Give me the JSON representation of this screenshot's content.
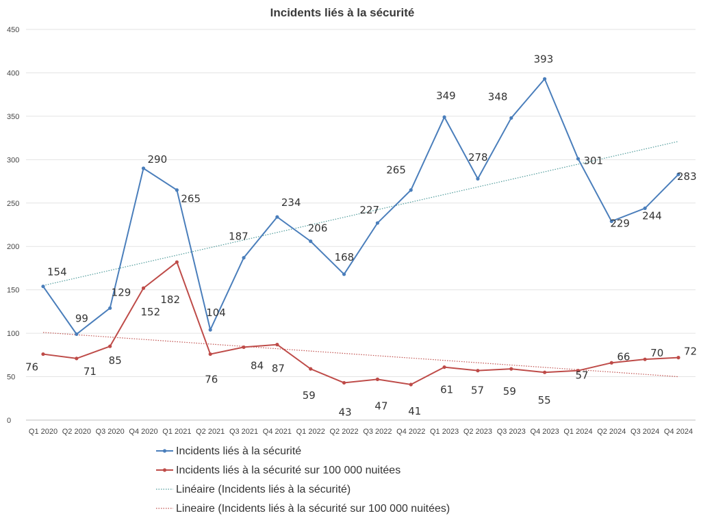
{
  "chart_data": {
    "type": "line",
    "title": "Incidents liés à la sécurité",
    "xlabel": "",
    "ylabel": "",
    "ylim": [
      0,
      450
    ],
    "yticks": [
      0,
      50,
      100,
      150,
      200,
      250,
      300,
      350,
      400,
      450
    ],
    "grid": true,
    "legend_position": "bottom",
    "categories": [
      "Q1 2020",
      "Q2 2020",
      "Q3 2020",
      "Q4 2020",
      "Q1 2021",
      "Q2 2021",
      "Q3 2021",
      "Q4 2021",
      "Q1 2022",
      "Q2 2022",
      "Q3 2022",
      "Q4 2022",
      "Q1 2023",
      "Q2 2023",
      "Q3 2023",
      "Q4 2023",
      "Q1 2024",
      "Q2 2024",
      "Q3 2024",
      "Q4 2024"
    ],
    "series": [
      {
        "name": "Incidents liés à la sécurité",
        "color": "#4a7ebb",
        "style": "solid",
        "values": [
          154,
          99,
          129,
          290,
          265,
          104,
          187,
          234,
          206,
          168,
          227,
          265,
          349,
          278,
          348,
          393,
          301,
          229,
          244,
          283
        ]
      },
      {
        "name": "Incidents liés à la sécurité sur 100 000 nuitées",
        "color": "#be4b48",
        "style": "solid",
        "values": [
          76,
          71,
          85,
          152,
          182,
          76,
          84,
          87,
          59,
          43,
          47,
          41,
          61,
          57,
          59,
          55,
          57,
          66,
          70,
          72
        ]
      }
    ],
    "trendlines": [
      {
        "name": "Linéaire (Incidents liés à la sécurité)",
        "color": "#4d9a9a",
        "style": "dotted",
        "start": 155,
        "end": 321
      },
      {
        "name": "Lineaire (Incidents liés à la sécurité sur 100 000 nuitées)",
        "color": "#c0504d",
        "style": "dotted",
        "start": 101,
        "end": 50
      }
    ]
  }
}
